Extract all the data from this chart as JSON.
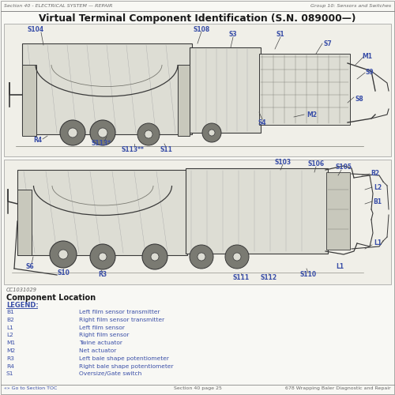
{
  "page_bg": "#f8f8f4",
  "header_left": "Section 40 - ELECTRICAL SYSTEM — REPAIR",
  "header_right": "Group 10: Sensors and Switches",
  "title": "Virtual Terminal Component Identification (S.N. 089000—)",
  "figure_label": "CC1031029",
  "legend_header": "Component Location",
  "legend_subheader": "LEGEND:",
  "legend_entries": [
    [
      "B1",
      "Left film sensor transmitter"
    ],
    [
      "B2",
      "Right film sensor transmitter"
    ],
    [
      "L1",
      "Left film sensor"
    ],
    [
      "L2",
      "Right film sensor"
    ],
    [
      "M1",
      "Twine actuator"
    ],
    [
      "M2",
      "Net actuator"
    ],
    [
      "R3",
      "Left bale shape potentiometer"
    ],
    [
      "R4",
      "Right bale shape potentiometer"
    ],
    [
      "S1",
      "Oversize/Gate switch"
    ]
  ],
  "footer_left": "«» Go to Section TOC",
  "footer_center": "Section 40 page 25",
  "footer_right": "678 Wrapping Baler Diagnostic and Repair",
  "blue": "#3a4fa8",
  "dark": "#1a1a1a",
  "gray": "#666666",
  "lightgray": "#aaaaaa",
  "diag_bg": "#f0efe8",
  "diag_border": "#999999",
  "mach_dark": "#3a3a3a",
  "mach_mid": "#7a7a72",
  "mach_light": "#c8c8bc",
  "mach_lighter": "#ddddd4"
}
